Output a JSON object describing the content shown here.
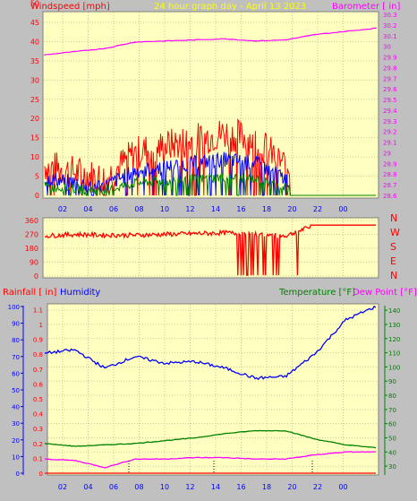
{
  "top_panel": {
    "left_title": "Windspeed [mph]",
    "center_title": "24 hour graph day - April 13 2023",
    "right_title": "Barometer [ in]",
    "left_ticks": [
      "0",
      "5",
      "10",
      "15",
      "20",
      "25",
      "30",
      "35",
      "40",
      "45",
      "50"
    ],
    "right_ticks": [
      "28.6",
      "28.7",
      "28.8",
      "28.9",
      "29",
      "29.1",
      "29.2",
      "29.3",
      "29.4",
      "29.5",
      "29.6",
      "29.7",
      "29.8",
      "29.9",
      "30",
      "30.1",
      "30.2",
      "30.3"
    ],
    "x_ticks": [
      "02",
      "04",
      "06",
      "08",
      "10",
      "12",
      "14",
      "16",
      "18",
      "20",
      "22",
      "00"
    ],
    "colors": {
      "left_title": "#ff0000",
      "center_title": "#ffff00",
      "right_title": "#ff00ff",
      "gust": "#ff0000",
      "wind": "#0000ff",
      "avg": "#008000",
      "barometer": "#ff00ff"
    }
  },
  "dir_panel": {
    "left_ticks": [
      "0",
      "90",
      "180",
      "270",
      "360"
    ],
    "compass": [
      "N",
      "W",
      "S",
      "E",
      "N"
    ],
    "color": "#ff0000"
  },
  "bottom_panel": {
    "rain_title": "Rainfall [ in]",
    "hum_title": "Humidity",
    "temp_title": "Temperature [°F]",
    "dew_title": "Dew Point [°F]",
    "rain_ticks": [
      "0",
      "0.1",
      "0.2",
      "0.3",
      "0.4",
      "0.5",
      "0.6",
      "0.7",
      "0.8",
      "0.9",
      "1",
      "1.1"
    ],
    "hum_ticks": [
      "0",
      "10",
      "20",
      "30",
      "40",
      "50",
      "60",
      "70",
      "80",
      "90",
      "100"
    ],
    "temp_ticks": [
      "30",
      "40",
      "50",
      "60",
      "70",
      "80",
      "90",
      "100",
      "110",
      "120",
      "130",
      "140"
    ],
    "x_ticks": [
      "02",
      "04",
      "06",
      "08",
      "10",
      "12",
      "14",
      "16",
      "18",
      "20",
      "22",
      "00"
    ],
    "colors": {
      "rain": "#ff0000",
      "humidity": "#0000ff",
      "temperature": "#008000",
      "dew": "#ff00ff",
      "temp_axis": "#008000"
    }
  },
  "chart_data": [
    {
      "type": "line",
      "title": "24 hour graph day - April 13 2023",
      "x": [
        "02",
        "04",
        "06",
        "08",
        "10",
        "12",
        "14",
        "16",
        "18",
        "20",
        "22",
        "00"
      ],
      "series": [
        {
          "name": "Windspeed [mph]",
          "axis": "left",
          "values": [
            4,
            3,
            2,
            6,
            7,
            8,
            9,
            8,
            4,
            0,
            0,
            0
          ]
        },
        {
          "name": "Barometer [ in]",
          "axis": "right",
          "values": [
            29.92,
            29.95,
            29.98,
            30.04,
            30.05,
            30.06,
            30.07,
            30.05,
            30.06,
            30.11,
            30.14,
            30.17
          ]
        }
      ],
      "ylim_left": [
        0,
        50
      ],
      "ylim_right": [
        28.6,
        30.3
      ]
    },
    {
      "type": "line",
      "title": "",
      "x": [
        "02",
        "04",
        "06",
        "08",
        "10",
        "12",
        "14",
        "16",
        "18",
        "20",
        "22",
        "00"
      ],
      "series": [
        {
          "name": "Wind direction",
          "values": [
            260,
            270,
            265,
            265,
            270,
            275,
            280,
            270,
            260,
            330,
            330,
            330
          ]
        }
      ],
      "ylim": [
        0,
        360
      ],
      "ylabels_right": [
        "N",
        "W",
        "S",
        "E",
        "N"
      ]
    },
    {
      "type": "line",
      "title": "",
      "x": [
        "02",
        "04",
        "06",
        "08",
        "10",
        "12",
        "14",
        "16",
        "18",
        "20",
        "22",
        "00"
      ],
      "series": [
        {
          "name": "Rainfall [ in]",
          "axis": "rain",
          "values": [
            0,
            0,
            0,
            0,
            0,
            0,
            0,
            0,
            0,
            0,
            0,
            0
          ]
        },
        {
          "name": "Humidity",
          "axis": "humidity",
          "values": [
            72,
            74,
            63,
            70,
            66,
            67,
            63,
            57,
            58,
            72,
            92,
            100
          ]
        },
        {
          "name": "Temperature [°F]",
          "axis": "temperature",
          "values": [
            46,
            44,
            45,
            46,
            48,
            50,
            53,
            55,
            55,
            49,
            45,
            43
          ]
        },
        {
          "name": "Dew Point [°F]",
          "axis": "temperature",
          "values": [
            35,
            34,
            29,
            35,
            35,
            36,
            36,
            35,
            35,
            38,
            40,
            40
          ]
        }
      ],
      "ylim_rain": [
        0,
        1.15
      ],
      "ylim_humidity": [
        0,
        100
      ],
      "ylim_temperature": [
        25,
        145
      ]
    }
  ]
}
